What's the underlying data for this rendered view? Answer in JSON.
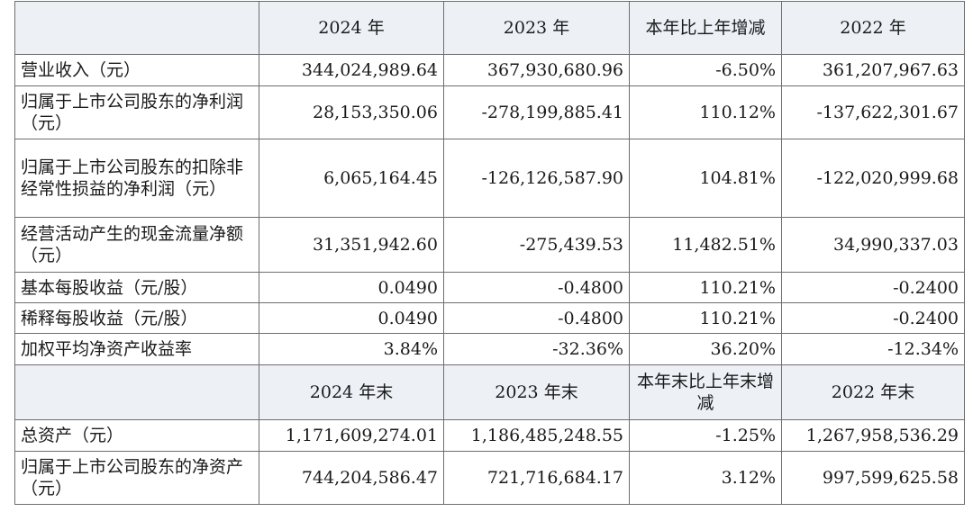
{
  "header1": {
    "label": "",
    "col1": "2024 年",
    "col2": "2023 年",
    "col3": "本年比上年增减",
    "col4": "2022 年"
  },
  "rows1": [
    {
      "label": "营业收入（元）",
      "v1": "344,024,989.64",
      "v2": "367,930,680.96",
      "v3": "-6.50%",
      "v4": "361,207,967.63"
    },
    {
      "label": "归属于上市公司股东的净利润（元）",
      "v1": "28,153,350.06",
      "v2": "-278,199,885.41",
      "v3": "110.12%",
      "v4": "-137,622,301.67"
    },
    {
      "label": "归属于上市公司股东的扣除非经常性损益的净利润（元）",
      "v1": "6,065,164.45",
      "v2": "-126,126,587.90",
      "v3": "104.81%",
      "v4": "-122,020,999.68"
    },
    {
      "label": "经营活动产生的现金流量净额（元）",
      "v1": "31,351,942.60",
      "v2": "-275,439.53",
      "v3": "11,482.51%",
      "v4": "34,990,337.03"
    },
    {
      "label": "基本每股收益（元/股）",
      "v1": "0.0490",
      "v2": "-0.4800",
      "v3": "110.21%",
      "v4": "-0.2400"
    },
    {
      "label": "稀释每股收益（元/股）",
      "v1": "0.0490",
      "v2": "-0.4800",
      "v3": "110.21%",
      "v4": "-0.2400"
    },
    {
      "label": "加权平均净资产收益率",
      "v1": "3.84%",
      "v2": "-32.36%",
      "v3": "36.20%",
      "v4": "-12.34%"
    }
  ],
  "header2": {
    "label": "",
    "col1": "2024 年末",
    "col2": "2023 年末",
    "col3": "本年末比上年末增减",
    "col4": "2022 年末"
  },
  "rows2": [
    {
      "label": "总资产（元）",
      "v1": "1,171,609,274.01",
      "v2": "1,186,485,248.55",
      "v3": "-1.25%",
      "v4": "1,267,958,536.29"
    },
    {
      "label": "归属于上市公司股东的净资产（元）",
      "v1": "744,204,586.47",
      "v2": "721,716,684.17",
      "v3": "3.12%",
      "v4": "997,599,625.58"
    }
  ]
}
